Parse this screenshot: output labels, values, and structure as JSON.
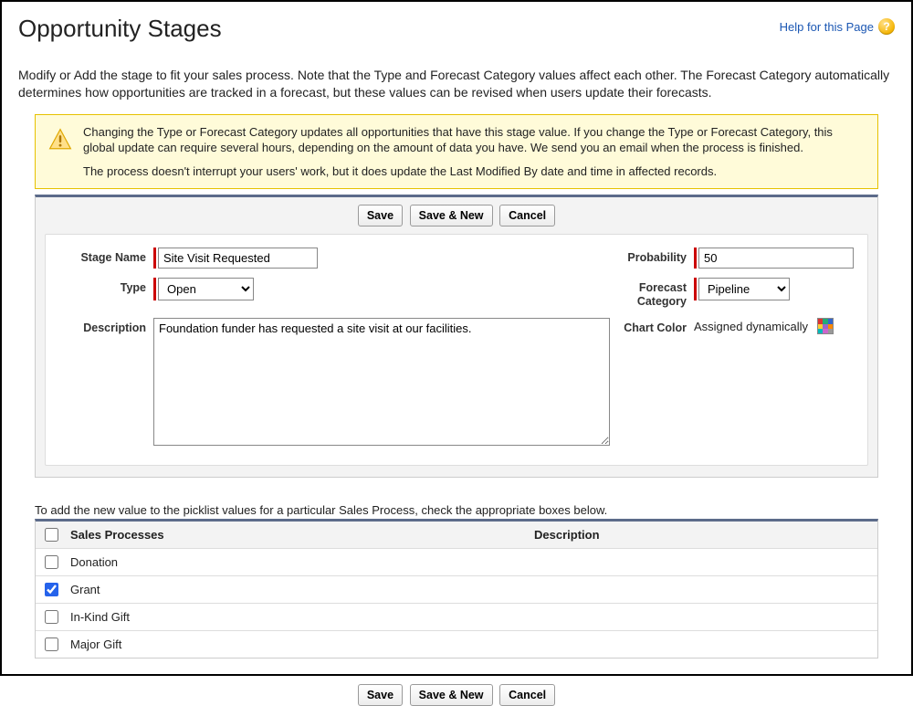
{
  "page": {
    "title": "Opportunity Stages",
    "help_link": "Help for this Page",
    "intro": "Modify or Add the stage to fit your sales process. Note that the Type and Forecast Category values affect each other. The Forecast Category automatically determines how opportunities are tracked in a forecast, but these values can be revised when users update their forecasts."
  },
  "warning": {
    "p1": "Changing the Type or Forecast Category updates all opportunities that have this stage value. If you change the Type or Forecast Category, this global update can require several hours, depending on the amount of data you have. We send you an email when the process is finished.",
    "p2": "The process doesn't interrupt your users' work, but it does update the Last Modified By date and time in affected records."
  },
  "buttons": {
    "save": "Save",
    "save_new": "Save & New",
    "cancel": "Cancel"
  },
  "form": {
    "labels": {
      "stage_name": "Stage Name",
      "type": "Type",
      "description": "Description",
      "probability": "Probability",
      "forecast_category": "Forecast Category",
      "chart_color": "Chart Color"
    },
    "values": {
      "stage_name": "Site Visit Requested",
      "type": "Open",
      "description": "Foundation funder has requested a site visit at our facilities.",
      "probability": "50",
      "forecast_category": "Pipeline",
      "chart_color_text": "Assigned dynamically"
    }
  },
  "picklist": {
    "intro": "To add the new value to the picklist values for a particular Sales Process, check the appropriate boxes below.",
    "columns": {
      "name": "Sales Processes",
      "desc": "Description"
    },
    "rows": [
      {
        "name": "Donation",
        "checked": false
      },
      {
        "name": "Grant",
        "checked": true
      },
      {
        "name": "In-Kind Gift",
        "checked": false
      },
      {
        "name": "Major Gift",
        "checked": false
      }
    ]
  }
}
